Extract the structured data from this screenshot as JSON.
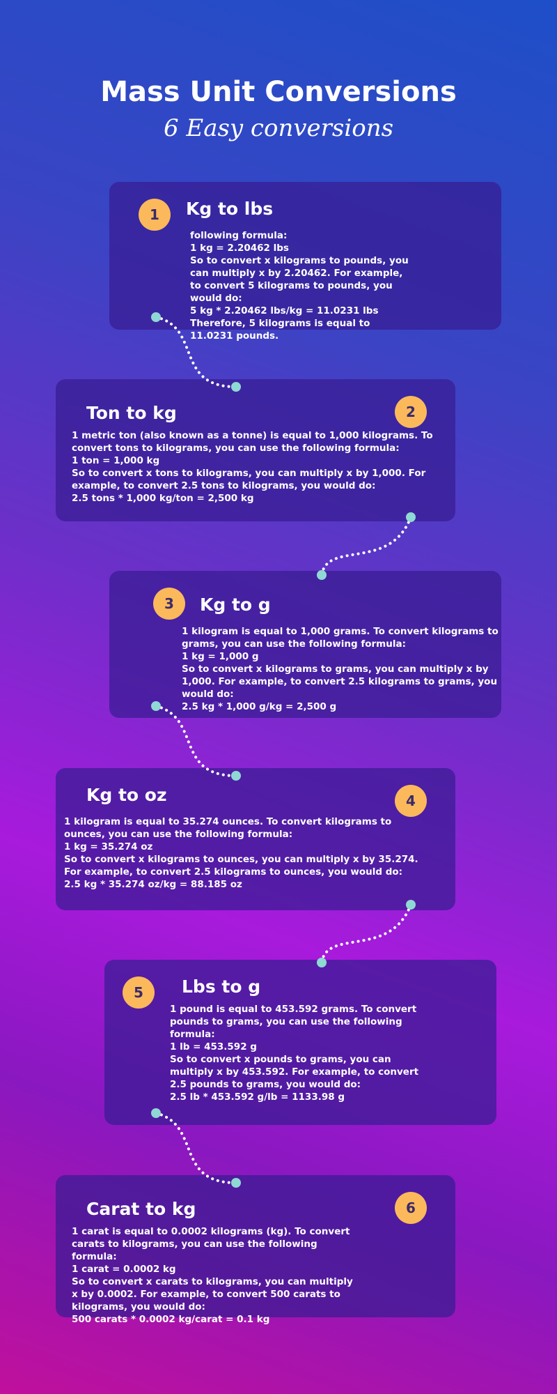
{
  "header": {
    "title": "Mass Unit Conversions",
    "subtitle": "6 Easy conversions"
  },
  "cards": [
    {
      "number": "1",
      "title": "Kg to lbs",
      "lines": [
        "following formula:",
        "1 kg = 2.20462 lbs",
        "So to convert x kilograms to pounds, you can multiply x by 2.20462. For example, to convert 5 kilograms to pounds, you would do:",
        "5 kg * 2.20462 lbs/kg = 11.0231 lbs",
        "Therefore, 5 kilograms is equal to 11.0231 pounds."
      ]
    },
    {
      "number": "2",
      "title": "Ton to kg",
      "lines": [
        "1 metric ton (also known as a tonne) is equal to 1,000 kilograms. To convert tons to kilograms, you can use the following formula:",
        "1 ton = 1,000 kg",
        "So to convert x tons to kilograms, you can multiply x by 1,000. For example, to convert 2.5 tons to kilograms, you would do:",
        "2.5 tons * 1,000 kg/ton = 2,500 kg"
      ]
    },
    {
      "number": "3",
      "title": "Kg to g",
      "lines": [
        "1 kilogram is equal to 1,000 grams. To convert kilograms to grams, you can use the following formula:",
        "1 kg = 1,000 g",
        "So to convert x kilograms to grams, you can multiply x by 1,000. For example, to convert 2.5 kilograms to grams, you would do:",
        "2.5 kg * 1,000 g/kg = 2,500 g"
      ]
    },
    {
      "number": "4",
      "title": "Kg to oz",
      "lines": [
        "1 kilogram is equal to 35.274 ounces. To convert kilograms to ounces, you can use the following formula:",
        "1 kg = 35.274 oz",
        "So to convert x kilograms to ounces, you can multiply x by 35.274. For example, to convert 2.5 kilograms to ounces, you would do:",
        "2.5 kg * 35.274 oz/kg = 88.185 oz"
      ]
    },
    {
      "number": "5",
      "title": "Lbs to g",
      "lines": [
        "1 pound is equal to 453.592 grams. To convert pounds to grams, you can use the following formula:",
        "1 lb = 453.592 g",
        "So to convert x pounds to grams, you can multiply x by 453.592. For example, to convert 2.5 pounds to grams, you would do:",
        "2.5 lb * 453.592 g/lb = 1133.98 g"
      ]
    },
    {
      "number": "6",
      "title": "Carat to kg",
      "lines": [
        "1 carat is equal to 0.0002 kilograms (kg). To convert carats to kilograms, you can use the following formula:",
        "1 carat = 0.0002 kg",
        "So to convert x carats to kilograms, you can multiply x by 0.0002. For example, to convert 500 carats to kilograms, you would do:",
        "500 carats * 0.0002 kg/carat = 0.1 kg"
      ]
    }
  ],
  "colors": {
    "badge": "#fcb95b",
    "connector_dot": "#8fd8d4",
    "card_bg": "#3a1f93"
  }
}
